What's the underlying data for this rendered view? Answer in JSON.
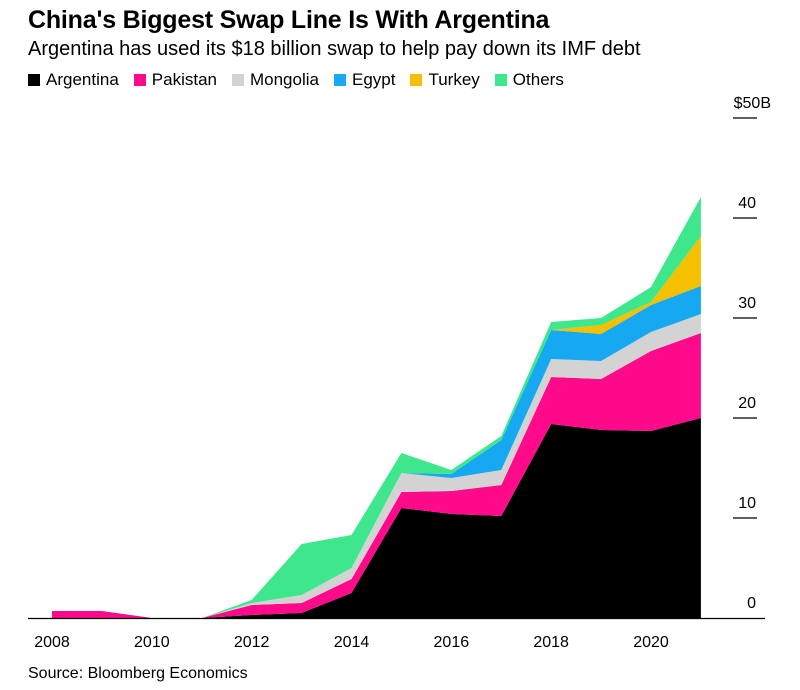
{
  "header": {
    "title": "China's Biggest Swap Line Is With Argentina",
    "subtitle": "Argentina has used its $18 billion swap to help pay down its IMF debt"
  },
  "footer": {
    "source": "Source: Bloomberg Economics"
  },
  "chart_data": {
    "type": "area",
    "stacked": true,
    "title": "China's Biggest Swap Line Is With Argentina",
    "subtitle": "Argentina has used its $18 billion swap to help pay down its IMF debt",
    "x": [
      2008,
      2009,
      2010,
      2011,
      2012,
      2013,
      2014,
      2015,
      2016,
      2017,
      2018,
      2019,
      2020,
      2021
    ],
    "series": [
      {
        "name": "Argentina",
        "color": "#000000",
        "values": [
          0,
          0,
          0,
          0,
          0.3,
          0.5,
          2.5,
          11,
          10.4,
          10.2,
          19.4,
          18.8,
          18.7,
          20
        ]
      },
      {
        "name": "Pakistan",
        "color": "#ff0a8a",
        "values": [
          0.7,
          0.7,
          0,
          0,
          1,
          1,
          1.4,
          1.6,
          2.3,
          3.1,
          4.7,
          5.1,
          8,
          8.5
        ]
      },
      {
        "name": "Mongolia",
        "color": "#d3d3d3",
        "values": [
          0,
          0,
          0,
          0,
          0.2,
          0.8,
          1.1,
          1.9,
          1.3,
          1.5,
          1.8,
          1.8,
          1.9,
          1.9
        ]
      },
      {
        "name": "Egypt",
        "color": "#16a8f0",
        "values": [
          0,
          0,
          0,
          0,
          0,
          0,
          0,
          0,
          0.4,
          3,
          2.9,
          2.7,
          2.7,
          2.8
        ]
      },
      {
        "name": "Turkey",
        "color": "#f5c000",
        "values": [
          0,
          0,
          0,
          0,
          0,
          0,
          0,
          0,
          0,
          0,
          0,
          0.9,
          0.3,
          5
        ]
      },
      {
        "name": "Others",
        "color": "#3ee78c",
        "values": [
          0,
          0,
          0,
          0,
          0.3,
          5.1,
          3.3,
          2,
          0.4,
          0.4,
          0.8,
          0.7,
          1.5,
          3.9
        ]
      }
    ],
    "ylim": [
      0,
      50
    ],
    "yticks": [
      "0",
      "10",
      "20",
      "30",
      "40",
      "$50B"
    ],
    "xticks": [
      "2008",
      "2010",
      "2012",
      "2014",
      "2016",
      "2018",
      "2020"
    ],
    "legend": "top-left",
    "grid": false
  }
}
